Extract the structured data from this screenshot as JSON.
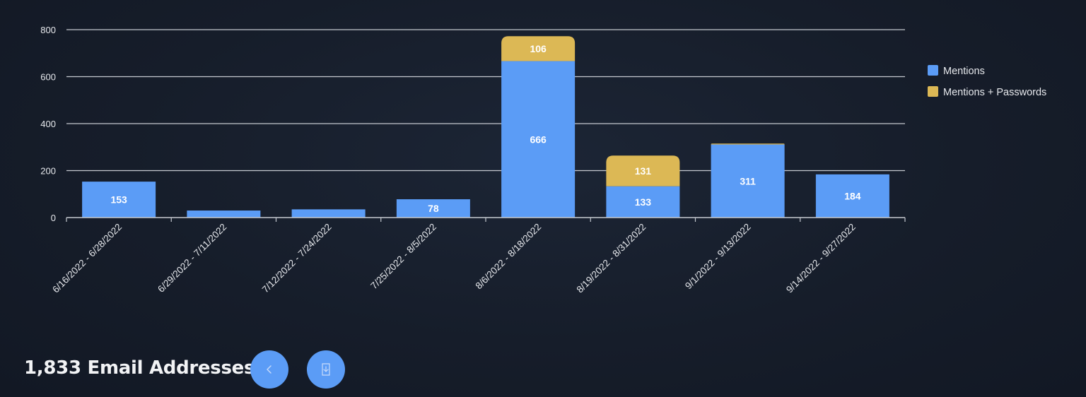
{
  "chart_data": {
    "type": "bar",
    "stacked": true,
    "categories": [
      "6/16/2022 - 6/28/2022",
      "6/29/2022 - 7/11/2022",
      "7/12/2022 - 7/24/2022",
      "7/25/2022 - 8/5/2022",
      "8/6/2022 - 8/18/2022",
      "8/19/2022 - 8/31/2022",
      "9/1/2022 - 9/13/2022",
      "9/14/2022 - 9/27/2022"
    ],
    "series": [
      {
        "name": "Mentions",
        "color": "#5b9cf6",
        "values": [
          153,
          30,
          35,
          78,
          666,
          133,
          311,
          184
        ],
        "labels": [
          "153",
          "",
          "",
          "78",
          "666",
          "133",
          "311",
          "184"
        ]
      },
      {
        "name": "Mentions + Passwords",
        "color": "#dcb855",
        "values": [
          0,
          0,
          0,
          0,
          106,
          131,
          4,
          0
        ],
        "labels": [
          "",
          "",
          "",
          "",
          "106",
          "131",
          "",
          ""
        ]
      }
    ],
    "yticks": [
      "0",
      "200",
      "400",
      "600",
      "800"
    ],
    "ylim": [
      0,
      800
    ],
    "grid": true,
    "legend_position": "right"
  },
  "footer": {
    "title": "1,833 Email Addresses",
    "back_icon": "chevron-left-icon",
    "download_icon": "download-icon"
  }
}
